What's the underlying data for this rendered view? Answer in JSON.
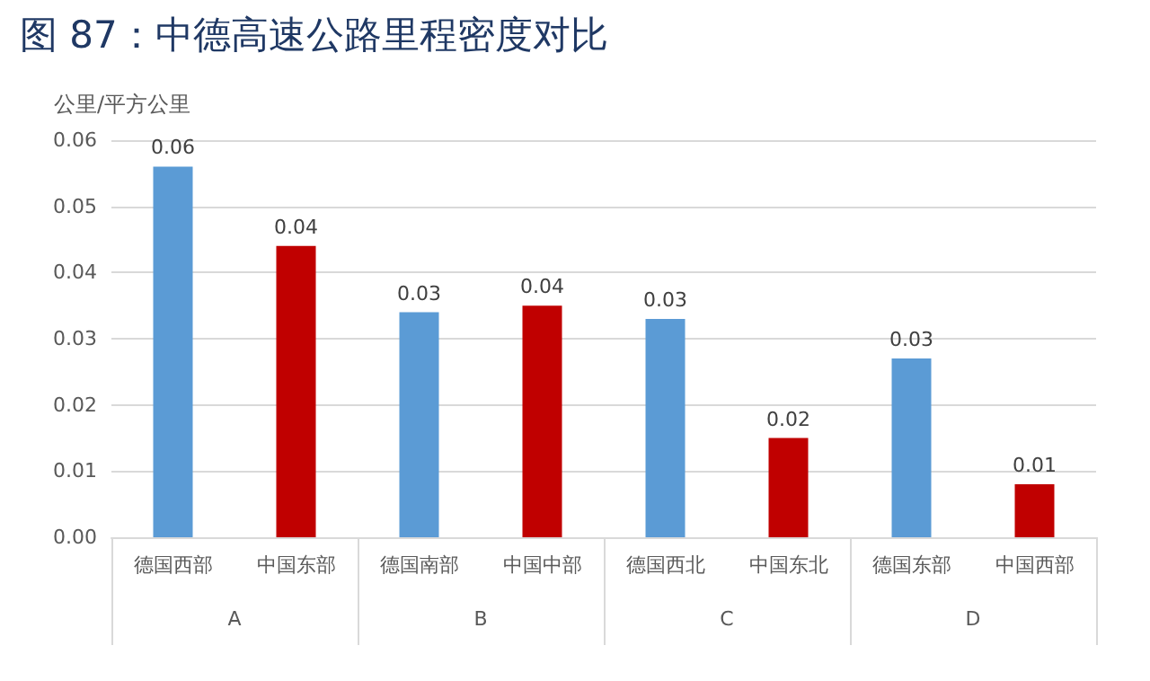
{
  "chart_data": {
    "type": "bar",
    "title": "图 87：中德高速公路里程密度对比",
    "ylabel": "公里/平方公里",
    "categories": [
      "德国西部",
      "中国东部",
      "德国南部",
      "中国中部",
      "德国西北",
      "中国东北",
      "德国东部",
      "中国西部"
    ],
    "values": [
      0.056,
      0.044,
      0.034,
      0.035,
      0.033,
      0.015,
      0.027,
      0.008
    ],
    "colors": [
      "#5b9bd5",
      "#c00000",
      "#5b9bd5",
      "#c00000",
      "#5b9bd5",
      "#c00000",
      "#5b9bd5",
      "#c00000"
    ],
    "value_labels": [
      "0.06",
      "0.04",
      "0.03",
      "0.04",
      "0.03",
      "0.02",
      "0.03",
      "0.01"
    ],
    "annotations": [
      "A",
      "B",
      "C",
      "D"
    ],
    "ylim": [
      0,
      0.06
    ],
    "yticks": [
      {
        "value": 0,
        "label": "0.00"
      },
      {
        "value": 0.01,
        "label": "0.01"
      },
      {
        "value": 0.02,
        "label": "0.02"
      },
      {
        "value": 0.03,
        "label": "0.03"
      },
      {
        "value": 0.04,
        "label": "0.04"
      },
      {
        "value": 0.05,
        "label": "0.05"
      },
      {
        "value": 0.06,
        "label": "0.06"
      }
    ],
    "grid": true
  }
}
